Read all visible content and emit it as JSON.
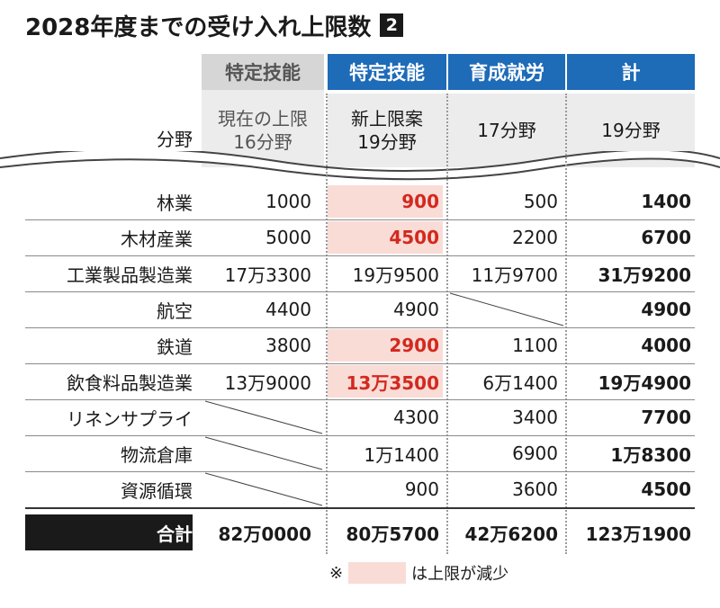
{
  "title": "2028年度までの受け入れ上限数",
  "badge": "2",
  "columns": {
    "field_label": "分野",
    "current": {
      "top": "特定技能",
      "sub1": "現在の上限",
      "sub2": "16分野"
    },
    "new": {
      "top": "特定技能",
      "sub1": "新上限案",
      "sub2": "19分野"
    },
    "training": {
      "top": "育成就労",
      "sub1": "17分野"
    },
    "total": {
      "top": "計",
      "sub1": "19分野"
    }
  },
  "rows": [
    {
      "label": "林業",
      "current": "1000",
      "new": "900",
      "new_reduced": true,
      "training": "500",
      "total": "1400"
    },
    {
      "label": "木材産業",
      "current": "5000",
      "new": "4500",
      "new_reduced": true,
      "training": "2200",
      "total": "6700"
    },
    {
      "label": "工業製品製造業",
      "current": "17万3300",
      "new": "19万9500",
      "new_reduced": false,
      "training": "11万9700",
      "total": "31万9200"
    },
    {
      "label": "航空",
      "current": "4400",
      "new": "4900",
      "new_reduced": false,
      "training": "",
      "total": "4900"
    },
    {
      "label": "鉄道",
      "current": "3800",
      "new": "2900",
      "new_reduced": true,
      "training": "1100",
      "total": "4000"
    },
    {
      "label": "飲食料品製造業",
      "current": "13万9000",
      "new": "13万3500",
      "new_reduced": true,
      "training": "6万1400",
      "total": "19万4900"
    },
    {
      "label": "リネンサプライ",
      "current": "",
      "new": "4300",
      "new_reduced": false,
      "training": "3400",
      "total": "7700"
    },
    {
      "label": "物流倉庫",
      "current": "",
      "new": "1万1400",
      "new_reduced": false,
      "training": "6900",
      "total": "1万8300"
    },
    {
      "label": "資源循環",
      "current": "",
      "new": "900",
      "new_reduced": false,
      "training": "3600",
      "total": "4500"
    }
  ],
  "totals": {
    "label": "合計",
    "current": "82万0000",
    "new": "80万5700",
    "training": "42万6200",
    "total": "123万1900"
  },
  "note": {
    "mark": "※",
    "text": "は上限が減少"
  },
  "colors": {
    "blue": "#1e6bb8",
    "gray": "#d6d6d6",
    "highlight": "#f9dcd6",
    "red": "#d3291f",
    "dark": "#1a1a1a"
  }
}
